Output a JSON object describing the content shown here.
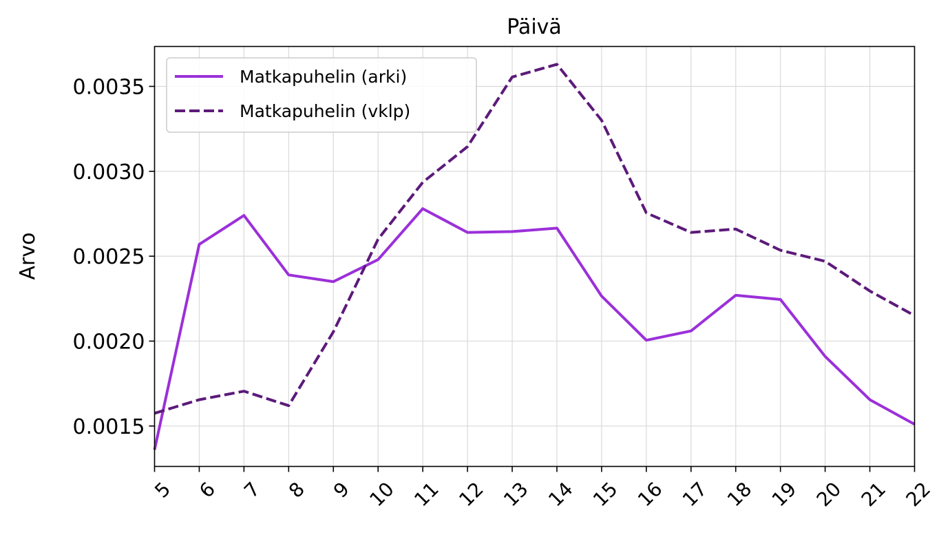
{
  "chart_data": {
    "type": "line",
    "title": "Päivä",
    "xlabel": "",
    "ylabel": "Arvo",
    "x": [
      5,
      6,
      7,
      8,
      9,
      10,
      11,
      12,
      13,
      14,
      15,
      16,
      17,
      18,
      19,
      20,
      21,
      22
    ],
    "x_tick_labels": [
      "5",
      "6",
      "7",
      "8",
      "9",
      "10",
      "11",
      "12",
      "13",
      "14",
      "15",
      "16",
      "17",
      "18",
      "19",
      "20",
      "21",
      "22"
    ],
    "xlim": [
      5,
      22
    ],
    "ylim": [
      0.001262,
      0.003735
    ],
    "y_ticks": [
      0.0015,
      0.002,
      0.0025,
      0.003,
      0.0035
    ],
    "y_tick_labels": [
      "0.0015",
      "0.0020",
      "0.0025",
      "0.0030",
      "0.0035"
    ],
    "grid": true,
    "legend_position": "top-left",
    "series": [
      {
        "name": "Matkapuhelin (arki)",
        "color": "#9b30d9",
        "style": "solid",
        "values": [
          0.00136,
          0.00257,
          0.00274,
          0.00239,
          0.00235,
          0.00248,
          0.00278,
          0.00264,
          0.002645,
          0.002665,
          0.002265,
          0.002005,
          0.00206,
          0.00227,
          0.002245,
          0.00191,
          0.001655,
          0.00151
        ]
      },
      {
        "name": "Matkapuhelin (vklp)",
        "color": "#5c1a7a",
        "style": "dashed",
        "values": [
          0.001575,
          0.001655,
          0.001705,
          0.00162,
          0.002055,
          0.0026,
          0.002935,
          0.003145,
          0.003555,
          0.00363,
          0.0033,
          0.002755,
          0.00264,
          0.00266,
          0.002535,
          0.00247,
          0.002295,
          0.00215
        ]
      }
    ]
  }
}
